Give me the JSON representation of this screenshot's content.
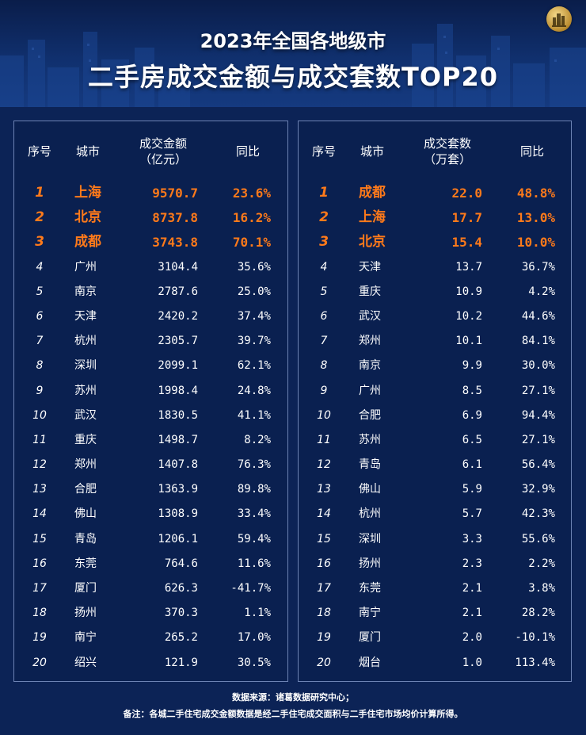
{
  "title_line1": "2023年全国各地级市",
  "title_line2": "二手房成交金额与成交套数TOP20",
  "colors": {
    "background": "#0c2356",
    "highlight": "#ff7a1a",
    "border": "#6d83b4",
    "text": "#ffffff"
  },
  "icons": {
    "logo": "city-skyline-logo-icon"
  },
  "chart_data": [
    {
      "type": "table",
      "columns": [
        "序号",
        "城市",
        "成交金额（亿元）",
        "同比"
      ],
      "header_labels": {
        "rank": "序号",
        "city": "城市",
        "value_l1": "成交金额",
        "value_l2": "（亿元）",
        "yoy": "同比"
      },
      "rows": [
        {
          "rank": "1",
          "city": "上海",
          "value": "9570.7",
          "yoy": "23.6%"
        },
        {
          "rank": "2",
          "city": "北京",
          "value": "8737.8",
          "yoy": "16.2%"
        },
        {
          "rank": "3",
          "city": "成都",
          "value": "3743.8",
          "yoy": "70.1%"
        },
        {
          "rank": "4",
          "city": "广州",
          "value": "3104.4",
          "yoy": "35.6%"
        },
        {
          "rank": "5",
          "city": "南京",
          "value": "2787.6",
          "yoy": "25.0%"
        },
        {
          "rank": "6",
          "city": "天津",
          "value": "2420.2",
          "yoy": "37.4%"
        },
        {
          "rank": "7",
          "city": "杭州",
          "value": "2305.7",
          "yoy": "39.7%"
        },
        {
          "rank": "8",
          "city": "深圳",
          "value": "2099.1",
          "yoy": "62.1%"
        },
        {
          "rank": "9",
          "city": "苏州",
          "value": "1998.4",
          "yoy": "24.8%"
        },
        {
          "rank": "10",
          "city": "武汉",
          "value": "1830.5",
          "yoy": "41.1%"
        },
        {
          "rank": "11",
          "city": "重庆",
          "value": "1498.7",
          "yoy": "8.2%"
        },
        {
          "rank": "12",
          "city": "郑州",
          "value": "1407.8",
          "yoy": "76.3%"
        },
        {
          "rank": "13",
          "city": "合肥",
          "value": "1363.9",
          "yoy": "89.8%"
        },
        {
          "rank": "14",
          "city": "佛山",
          "value": "1308.9",
          "yoy": "33.4%"
        },
        {
          "rank": "15",
          "city": "青岛",
          "value": "1206.1",
          "yoy": "59.4%"
        },
        {
          "rank": "16",
          "city": "东莞",
          "value": "764.6",
          "yoy": "11.6%"
        },
        {
          "rank": "17",
          "city": "厦门",
          "value": "626.3",
          "yoy": "-41.7%"
        },
        {
          "rank": "18",
          "city": "扬州",
          "value": "370.3",
          "yoy": "1.1%"
        },
        {
          "rank": "19",
          "city": "南宁",
          "value": "265.2",
          "yoy": "17.0%"
        },
        {
          "rank": "20",
          "city": "绍兴",
          "value": "121.9",
          "yoy": "30.5%"
        }
      ]
    },
    {
      "type": "table",
      "columns": [
        "序号",
        "城市",
        "成交套数（万套）",
        "同比"
      ],
      "header_labels": {
        "rank": "序号",
        "city": "城市",
        "value_l1": "成交套数",
        "value_l2": "（万套）",
        "yoy": "同比"
      },
      "rows": [
        {
          "rank": "1",
          "city": "成都",
          "value": "22.0",
          "yoy": "48.8%"
        },
        {
          "rank": "2",
          "city": "上海",
          "value": "17.7",
          "yoy": "13.0%"
        },
        {
          "rank": "3",
          "city": "北京",
          "value": "15.4",
          "yoy": "10.0%"
        },
        {
          "rank": "4",
          "city": "天津",
          "value": "13.7",
          "yoy": "36.7%"
        },
        {
          "rank": "5",
          "city": "重庆",
          "value": "10.9",
          "yoy": "4.2%"
        },
        {
          "rank": "6",
          "city": "武汉",
          "value": "10.2",
          "yoy": "44.6%"
        },
        {
          "rank": "7",
          "city": "郑州",
          "value": "10.1",
          "yoy": "84.1%"
        },
        {
          "rank": "8",
          "city": "南京",
          "value": "9.9",
          "yoy": "30.0%"
        },
        {
          "rank": "9",
          "city": "广州",
          "value": "8.5",
          "yoy": "27.1%"
        },
        {
          "rank": "10",
          "city": "合肥",
          "value": "6.9",
          "yoy": "94.4%"
        },
        {
          "rank": "11",
          "city": "苏州",
          "value": "6.5",
          "yoy": "27.1%"
        },
        {
          "rank": "12",
          "city": "青岛",
          "value": "6.1",
          "yoy": "56.4%"
        },
        {
          "rank": "13",
          "city": "佛山",
          "value": "5.9",
          "yoy": "32.9%"
        },
        {
          "rank": "14",
          "city": "杭州",
          "value": "5.7",
          "yoy": "42.3%"
        },
        {
          "rank": "15",
          "city": "深圳",
          "value": "3.3",
          "yoy": "55.6%"
        },
        {
          "rank": "16",
          "city": "扬州",
          "value": "2.3",
          "yoy": "2.2%"
        },
        {
          "rank": "17",
          "city": "东莞",
          "value": "2.1",
          "yoy": "3.8%"
        },
        {
          "rank": "18",
          "city": "南宁",
          "value": "2.1",
          "yoy": "28.2%"
        },
        {
          "rank": "19",
          "city": "厦门",
          "value": "2.0",
          "yoy": "-10.1%"
        },
        {
          "rank": "20",
          "city": "烟台",
          "value": "1.0",
          "yoy": "113.4%"
        }
      ]
    }
  ],
  "footer": {
    "source": "数据来源：诸葛数据研究中心；",
    "note": "备注：各城二手住宅成交金额数据是经二手住宅成交面积与二手住宅市场均价计算所得。"
  }
}
